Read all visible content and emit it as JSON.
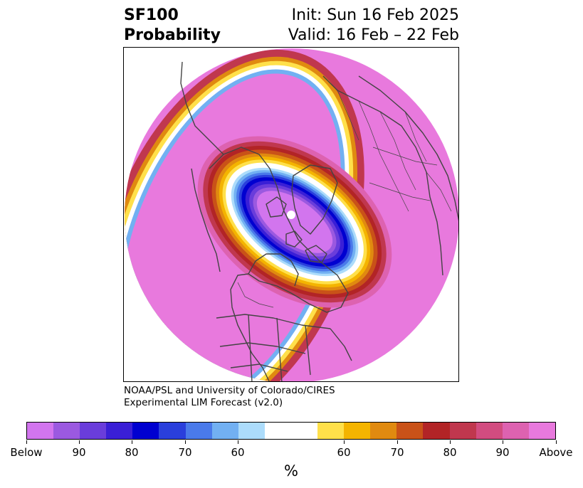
{
  "header": {
    "variable": "SF100",
    "product": "Probability",
    "init": "Init: Sun 16 Feb 2025",
    "valid": "Valid: 16 Feb – 22 Feb"
  },
  "credit": {
    "line1": "NOAA/PSL and University of Colorado/CIRES",
    "line2": "Experimental LIM Forecast (v2.0)"
  },
  "map": {
    "projection": "north-polar-stereographic",
    "background_category": "Above",
    "below_region": "Canadian Arctic Archipelago, Hudson Bay and western Greenland",
    "colors": {
      "above": "#e879dd",
      "below_core": "#d275ee",
      "coastline": "#444444"
    }
  },
  "colorbar": {
    "unit": "%",
    "segments": [
      {
        "color": "#d275ee",
        "width": 1
      },
      {
        "color": "#9b59e0",
        "width": 1
      },
      {
        "color": "#6a3ddb",
        "width": 1
      },
      {
        "color": "#3a1fd6",
        "width": 1
      },
      {
        "color": "#0000d0",
        "width": 1
      },
      {
        "color": "#2a3fdc",
        "width": 1
      },
      {
        "color": "#4a7aea",
        "width": 1
      },
      {
        "color": "#72b0f2",
        "width": 1
      },
      {
        "color": "#acdcfb",
        "width": 1
      },
      {
        "color": "#ffffff",
        "width": 2
      },
      {
        "color": "#ffe04a",
        "width": 1
      },
      {
        "color": "#f4b400",
        "width": 1
      },
      {
        "color": "#e08a10",
        "width": 1
      },
      {
        "color": "#c95218",
        "width": 1
      },
      {
        "color": "#b22426",
        "width": 1
      },
      {
        "color": "#c0374e",
        "width": 1
      },
      {
        "color": "#d24c80",
        "width": 1
      },
      {
        "color": "#dd62b0",
        "width": 1
      },
      {
        "color": "#e879dd",
        "width": 1
      }
    ],
    "ticks": [
      "Below",
      "90",
      "80",
      "70",
      "60",
      "60",
      "70",
      "80",
      "90",
      "Above"
    ]
  }
}
